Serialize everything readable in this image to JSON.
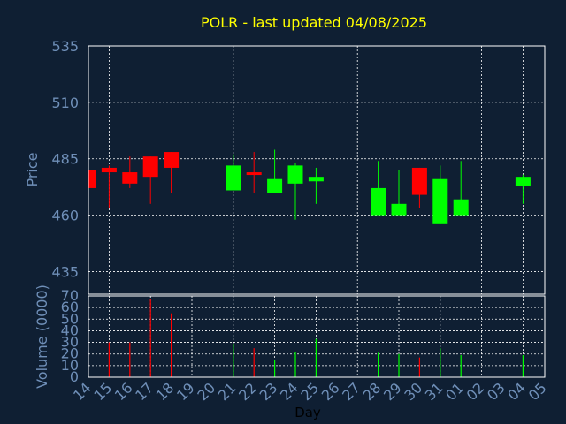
{
  "title": "POLR - last updated 04/08/2025",
  "colors": {
    "background": "#0f1f33",
    "title": "#ffff00",
    "axis_text": "#6f8fb8",
    "frame": "#ffffff",
    "grid": "#ffffff",
    "up": "#00ff00",
    "down": "#ff0000"
  },
  "chart_data": [
    {
      "type": "candlestick",
      "ylabel": "Price",
      "ylim": [
        425,
        535
      ],
      "y_ticks": [
        435,
        460,
        485,
        510,
        535
      ],
      "grid": true,
      "candles": [
        {
          "x": "14",
          "open": 480,
          "high": 481,
          "low": 472,
          "close": 472
        },
        {
          "x": "15",
          "open": 481,
          "high": 482,
          "low": 463,
          "close": 479
        },
        {
          "x": "16",
          "open": 479,
          "high": 486,
          "low": 472,
          "close": 474
        },
        {
          "x": "17",
          "open": 486,
          "high": 486,
          "low": 465,
          "close": 477
        },
        {
          "x": "18",
          "open": 488,
          "high": 488,
          "low": 470,
          "close": 481
        },
        {
          "x": "21",
          "open": 471,
          "high": 487,
          "low": 471,
          "close": 482
        },
        {
          "x": "22",
          "open": 479,
          "high": 488,
          "low": 470,
          "close": 478
        },
        {
          "x": "23",
          "open": 470,
          "high": 489,
          "low": 470,
          "close": 476
        },
        {
          "x": "24",
          "open": 474,
          "high": 483,
          "low": 458,
          "close": 482
        },
        {
          "x": "25",
          "open": 475,
          "high": 481,
          "low": 465,
          "close": 477
        },
        {
          "x": "28",
          "open": 460,
          "high": 484,
          "low": 460,
          "close": 472
        },
        {
          "x": "29",
          "open": 460,
          "high": 480,
          "low": 460,
          "close": 465
        },
        {
          "x": "30",
          "open": 481,
          "high": 481,
          "low": 463,
          "close": 469
        },
        {
          "x": "31",
          "open": 456,
          "high": 482,
          "low": 456,
          "close": 476
        },
        {
          "x": "01",
          "open": 460,
          "high": 484,
          "low": 460,
          "close": 467
        },
        {
          "x": "04",
          "open": 473,
          "high": 478,
          "low": 465,
          "close": 477
        }
      ]
    },
    {
      "type": "bar",
      "ylabel": "Volume (0000)",
      "xlabel": "Day",
      "ylim": [
        0,
        70
      ],
      "y_ticks": [
        0,
        10,
        20,
        30,
        40,
        50,
        60,
        70
      ],
      "grid": true,
      "categories": [
        "14",
        "15",
        "16",
        "17",
        "18",
        "19",
        "20",
        "21",
        "22",
        "23",
        "24",
        "25",
        "26",
        "27",
        "28",
        "29",
        "30",
        "31",
        "01",
        "02",
        "03",
        "04",
        "05"
      ],
      "bars": [
        {
          "x": "15",
          "value": 30,
          "direction": "down"
        },
        {
          "x": "16",
          "value": 30,
          "direction": "down"
        },
        {
          "x": "17",
          "value": 67,
          "direction": "down"
        },
        {
          "x": "18",
          "value": 55,
          "direction": "down"
        },
        {
          "x": "21",
          "value": 29,
          "direction": "up"
        },
        {
          "x": "22",
          "value": 25,
          "direction": "down"
        },
        {
          "x": "23",
          "value": 15,
          "direction": "up"
        },
        {
          "x": "24",
          "value": 22,
          "direction": "up"
        },
        {
          "x": "25",
          "value": 33,
          "direction": "up"
        },
        {
          "x": "28",
          "value": 21,
          "direction": "up"
        },
        {
          "x": "29",
          "value": 20,
          "direction": "up"
        },
        {
          "x": "30",
          "value": 17,
          "direction": "down"
        },
        {
          "x": "31",
          "value": 25,
          "direction": "up"
        },
        {
          "x": "01",
          "value": 19,
          "direction": "up"
        },
        {
          "x": "04",
          "value": 19,
          "direction": "up"
        }
      ]
    }
  ]
}
